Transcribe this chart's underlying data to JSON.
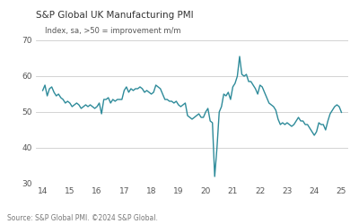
{
  "title": "S&P Global UK Manufacturing PMI",
  "subtitle": "Index, sa, >50 = improvement m/m",
  "source": "Source: S&P Global PMI. ©2024 S&P Global.",
  "line_color": "#2e8b9a",
  "background_color": "#ffffff",
  "plot_bg_color": "#ffffff",
  "grid_color": "#cccccc",
  "xlim": [
    13.75,
    25.25
  ],
  "ylim": [
    30,
    70
  ],
  "yticks": [
    30,
    40,
    50,
    60,
    70
  ],
  "xticks": [
    14,
    15,
    16,
    17,
    18,
    19,
    20,
    21,
    22,
    23,
    24,
    25
  ],
  "x_values": [
    14.0,
    14.083,
    14.167,
    14.25,
    14.333,
    14.417,
    14.5,
    14.583,
    14.667,
    14.75,
    14.833,
    14.917,
    15.0,
    15.083,
    15.167,
    15.25,
    15.333,
    15.417,
    15.5,
    15.583,
    15.667,
    15.75,
    15.833,
    15.917,
    16.0,
    16.083,
    16.167,
    16.25,
    16.333,
    16.417,
    16.5,
    16.583,
    16.667,
    16.75,
    16.833,
    16.917,
    17.0,
    17.083,
    17.167,
    17.25,
    17.333,
    17.417,
    17.5,
    17.583,
    17.667,
    17.75,
    17.833,
    17.917,
    18.0,
    18.083,
    18.167,
    18.25,
    18.333,
    18.417,
    18.5,
    18.583,
    18.667,
    18.75,
    18.833,
    18.917,
    19.0,
    19.083,
    19.167,
    19.25,
    19.333,
    19.417,
    19.5,
    19.583,
    19.667,
    19.75,
    19.833,
    19.917,
    20.0,
    20.083,
    20.167,
    20.25,
    20.333,
    20.417,
    20.5,
    20.583,
    20.667,
    20.75,
    20.833,
    20.917,
    21.0,
    21.083,
    21.167,
    21.25,
    21.333,
    21.417,
    21.5,
    21.583,
    21.667,
    21.75,
    21.833,
    21.917,
    22.0,
    22.083,
    22.167,
    22.25,
    22.333,
    22.417,
    22.5,
    22.583,
    22.667,
    22.75,
    22.833,
    22.917,
    23.0,
    23.083,
    23.167,
    23.25,
    23.333,
    23.417,
    23.5,
    23.583,
    23.667,
    23.75,
    23.833,
    23.917,
    24.0,
    24.083,
    24.167,
    24.25,
    24.333,
    24.417,
    24.5,
    24.583,
    24.667,
    24.75,
    24.833,
    24.917,
    25.0
  ],
  "y_values": [
    56.0,
    57.5,
    54.5,
    56.5,
    57.0,
    55.5,
    54.5,
    55.0,
    54.0,
    53.5,
    52.5,
    53.0,
    52.5,
    51.5,
    52.0,
    52.5,
    52.0,
    51.0,
    51.5,
    52.0,
    51.5,
    52.0,
    51.5,
    51.0,
    51.5,
    52.5,
    49.5,
    53.5,
    53.5,
    54.0,
    52.5,
    53.5,
    53.0,
    53.5,
    53.5,
    53.5,
    56.0,
    57.0,
    55.5,
    56.5,
    56.0,
    56.5,
    56.5,
    57.0,
    56.5,
    55.5,
    56.0,
    55.5,
    55.0,
    55.5,
    57.5,
    57.0,
    56.5,
    55.0,
    53.5,
    53.5,
    53.0,
    53.0,
    52.5,
    53.0,
    52.0,
    51.5,
    52.0,
    52.5,
    49.0,
    48.5,
    48.0,
    48.5,
    49.0,
    49.5,
    48.5,
    48.5,
    50.0,
    51.0,
    47.5,
    47.0,
    32.0,
    40.0,
    50.0,
    51.5,
    55.0,
    54.5,
    55.5,
    53.5,
    57.0,
    58.0,
    60.0,
    65.5,
    60.5,
    60.0,
    60.5,
    58.5,
    58.5,
    57.5,
    56.5,
    55.0,
    57.5,
    57.0,
    55.5,
    54.0,
    52.5,
    52.0,
    51.5,
    50.5,
    48.0,
    46.5,
    47.0,
    46.5,
    47.0,
    46.5,
    46.0,
    46.5,
    47.5,
    48.5,
    47.5,
    47.5,
    46.5,
    46.5,
    45.5,
    44.5,
    43.5,
    44.5,
    47.0,
    46.5,
    46.5,
    45.0,
    47.5,
    49.5,
    50.5,
    51.5,
    52.0,
    51.5,
    49.9
  ]
}
